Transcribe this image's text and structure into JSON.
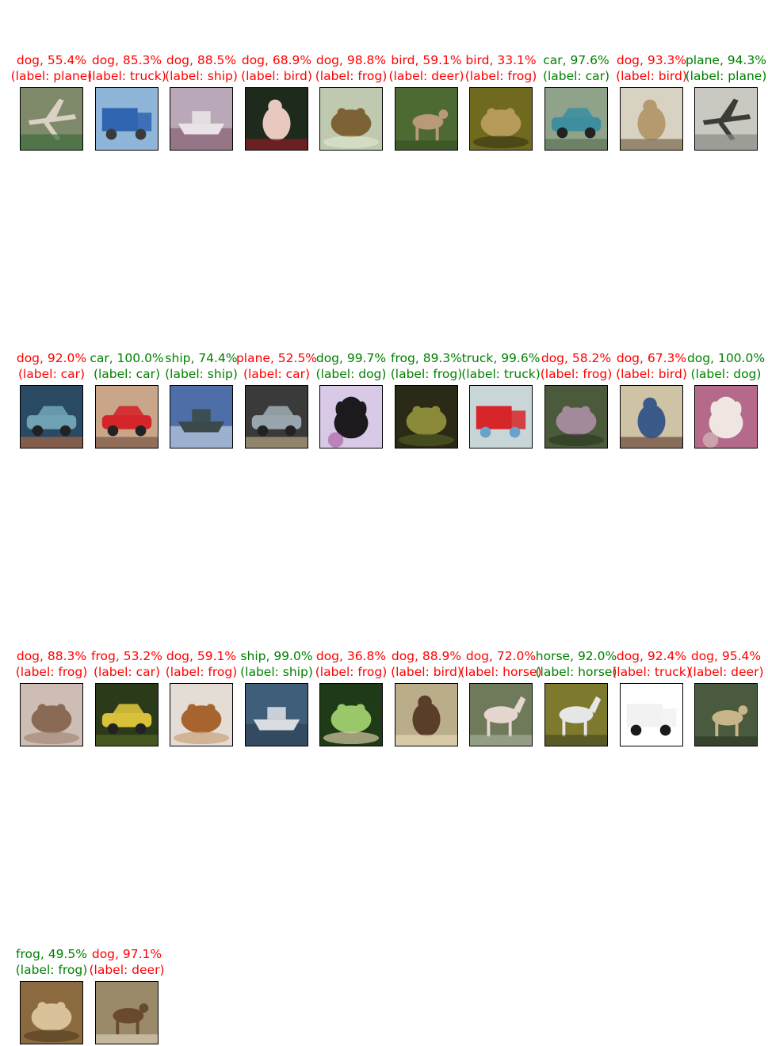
{
  "colors": {
    "correct": "#008000",
    "incorrect": "#ff0000",
    "frame": "#000000"
  },
  "items": [
    {
      "pred": "dog, 55.4%",
      "label": "(label: plane)",
      "correct": false,
      "icon": "plane-thumbnail",
      "bg": "#7f8a6a",
      "fg": "#d9d2c3",
      "accent": "#3d6b3a"
    },
    {
      "pred": "dog, 85.3%",
      "label": "(label: truck)",
      "correct": false,
      "icon": "truck-thumbnail",
      "bg": "#8fb5d8",
      "fg": "#2f64b0",
      "accent": "#3a3a3a"
    },
    {
      "pred": "dog, 88.5%",
      "label": "(label: ship)",
      "correct": false,
      "icon": "ship-thumbnail",
      "bg": "#b9a9b8",
      "fg": "#e9e2e6",
      "accent": "#7a4b5e"
    },
    {
      "pred": "dog, 68.9%",
      "label": "(label: bird)",
      "correct": false,
      "icon": "bird-thumbnail",
      "bg": "#1d2a1c",
      "fg": "#e8c9bf",
      "accent": "#8c1c24"
    },
    {
      "pred": "dog, 98.8%",
      "label": "(label: frog)",
      "correct": false,
      "icon": "frog-thumbnail",
      "bg": "#bfc9b0",
      "fg": "#7d6236",
      "accent": "#dde4cd"
    },
    {
      "pred": "bird, 59.1%",
      "label": "(label: deer)",
      "correct": false,
      "icon": "deer-thumbnail",
      "bg": "#4c6a31",
      "fg": "#b89a78",
      "accent": "#3a5226"
    },
    {
      "pred": "bird, 33.1%",
      "label": "(label: frog)",
      "correct": false,
      "icon": "frog-thumbnail",
      "bg": "#6f6a1e",
      "fg": "#b59a5a",
      "accent": "#3d3a14"
    },
    {
      "pred": "car, 97.6%",
      "label": "(label: car)",
      "correct": true,
      "icon": "car-thumbnail",
      "bg": "#8ea38a",
      "fg": "#3f8ea0",
      "accent": "#556b4f"
    },
    {
      "pred": "dog, 93.3%",
      "label": "(label: bird)",
      "correct": false,
      "icon": "bird-thumbnail",
      "bg": "#d8d2c2",
      "fg": "#b49a6e",
      "accent": "#7b6a4c"
    },
    {
      "pred": "plane, 94.3%",
      "label": "(label: plane)",
      "correct": true,
      "icon": "plane-thumbnail",
      "bg": "#c9c9c1",
      "fg": "#3b3b38",
      "accent": "#8a8a84"
    },
    {
      "pred": "dog, 92.0%",
      "label": "(label: car)",
      "correct": false,
      "icon": "car-thumbnail",
      "bg": "#2a4a64",
      "fg": "#6fa2b3",
      "accent": "#c06a3a"
    },
    {
      "pred": "car, 100.0%",
      "label": "(label: car)",
      "correct": true,
      "icon": "car-thumbnail",
      "bg": "#c9a58a",
      "fg": "#d4262a",
      "accent": "#6b4a3a"
    },
    {
      "pred": "ship, 74.4%",
      "label": "(label: ship)",
      "correct": true,
      "icon": "ship-thumbnail",
      "bg": "#4d6ea6",
      "fg": "#3a4a4a",
      "accent": "#dfe7f0"
    },
    {
      "pred": "plane, 52.5%",
      "label": "(label: car)",
      "correct": false,
      "icon": "car-thumbnail",
      "bg": "#3a3a3a",
      "fg": "#9aa6ae",
      "accent": "#c9b58a"
    },
    {
      "pred": "dog, 99.7%",
      "label": "(label: dog)",
      "correct": true,
      "icon": "dog-thumbnail",
      "bg": "#d8c9e6",
      "fg": "#1c1a1d",
      "accent": "#a6569e"
    },
    {
      "pred": "frog, 89.3%",
      "label": "(label: frog)",
      "correct": true,
      "icon": "frog-thumbnail",
      "bg": "#2b2a16",
      "fg": "#8a8a3a",
      "accent": "#4f5a24"
    },
    {
      "pred": "truck, 99.6%",
      "label": "(label: truck)",
      "correct": true,
      "icon": "truck-thumbnail",
      "bg": "#c9d6d8",
      "fg": "#d6262a",
      "accent": "#6aa3c9"
    },
    {
      "pred": "dog, 58.2%",
      "label": "(label: frog)",
      "correct": false,
      "icon": "frog-thumbnail",
      "bg": "#4a5a3a",
      "fg": "#a38a9a",
      "accent": "#2f3a26"
    },
    {
      "pred": "dog, 67.3%",
      "label": "(label: bird)",
      "correct": false,
      "icon": "bird-thumbnail",
      "bg": "#cfc3a6",
      "fg": "#3b5a8a",
      "accent": "#6a4a3a"
    },
    {
      "pred": "dog, 100.0%",
      "label": "(label: dog)",
      "correct": true,
      "icon": "dog-thumbnail",
      "bg": "#b56a8c",
      "fg": "#efe6e1",
      "accent": "#d9c9c2"
    },
    {
      "pred": "dog, 88.3%",
      "label": "(label: frog)",
      "correct": false,
      "icon": "frog-thumbnail",
      "bg": "#cdbdb4",
      "fg": "#8a6a54",
      "accent": "#a58a76"
    },
    {
      "pred": "frog, 53.2%",
      "label": "(label: car)",
      "correct": false,
      "icon": "car-thumbnail",
      "bg": "#2b3a18",
      "fg": "#d9c23a",
      "accent": "#5a6a2a"
    },
    {
      "pred": "dog, 59.1%",
      "label": "(label: frog)",
      "correct": false,
      "icon": "frog-thumbnail",
      "bg": "#e3ddd6",
      "fg": "#a8642e",
      "accent": "#c9a27a"
    },
    {
      "pred": "ship, 99.0%",
      "label": "(label: ship)",
      "correct": true,
      "icon": "ship-thumbnail",
      "bg": "#3e5e7a",
      "fg": "#d9dde1",
      "accent": "#2a3a4a"
    },
    {
      "pred": "dog, 36.8%",
      "label": "(label: frog)",
      "correct": false,
      "icon": "frog-thumbnail",
      "bg": "#1f3a16",
      "fg": "#9ac76a",
      "accent": "#d6c9a6"
    },
    {
      "pred": "dog, 88.9%",
      "label": "(label: bird)",
      "correct": false,
      "icon": "bird-thumbnail",
      "bg": "#b9ad8a",
      "fg": "#5a3e2a",
      "accent": "#e3d6b4"
    },
    {
      "pred": "dog, 72.0%",
      "label": "(label: horse)",
      "correct": false,
      "icon": "horse-thumbnail",
      "bg": "#6e7a5a",
      "fg": "#e6d6d0",
      "accent": "#b9c0b0"
    },
    {
      "pred": "horse, 92.0%",
      "label": "(label: horse)",
      "correct": true,
      "icon": "horse-thumbnail",
      "bg": "#7d7a2e",
      "fg": "#e6e6e6",
      "accent": "#3a3a1a"
    },
    {
      "pred": "dog, 92.4%",
      "label": "(label: truck)",
      "correct": false,
      "icon": "truck-thumbnail",
      "bg": "#ffffff",
      "fg": "#f2f2f2",
      "accent": "#1a1a1a"
    },
    {
      "pred": "dog, 95.4%",
      "label": "(label: deer)",
      "correct": false,
      "icon": "deer-thumbnail",
      "bg": "#4a5a3e",
      "fg": "#c9b58a",
      "accent": "#2e3a26"
    },
    {
      "pred": "frog, 49.5%",
      "label": "(label: frog)",
      "correct": true,
      "icon": "frog-thumbnail",
      "bg": "#8a6a3e",
      "fg": "#d9c29a",
      "accent": "#5a4226"
    },
    {
      "pred": "dog, 97.1%",
      "label": "(label: deer)",
      "correct": false,
      "icon": "deer-thumbnail",
      "bg": "#9a8a6a",
      "fg": "#6a4a2e",
      "accent": "#d6cab0"
    }
  ]
}
